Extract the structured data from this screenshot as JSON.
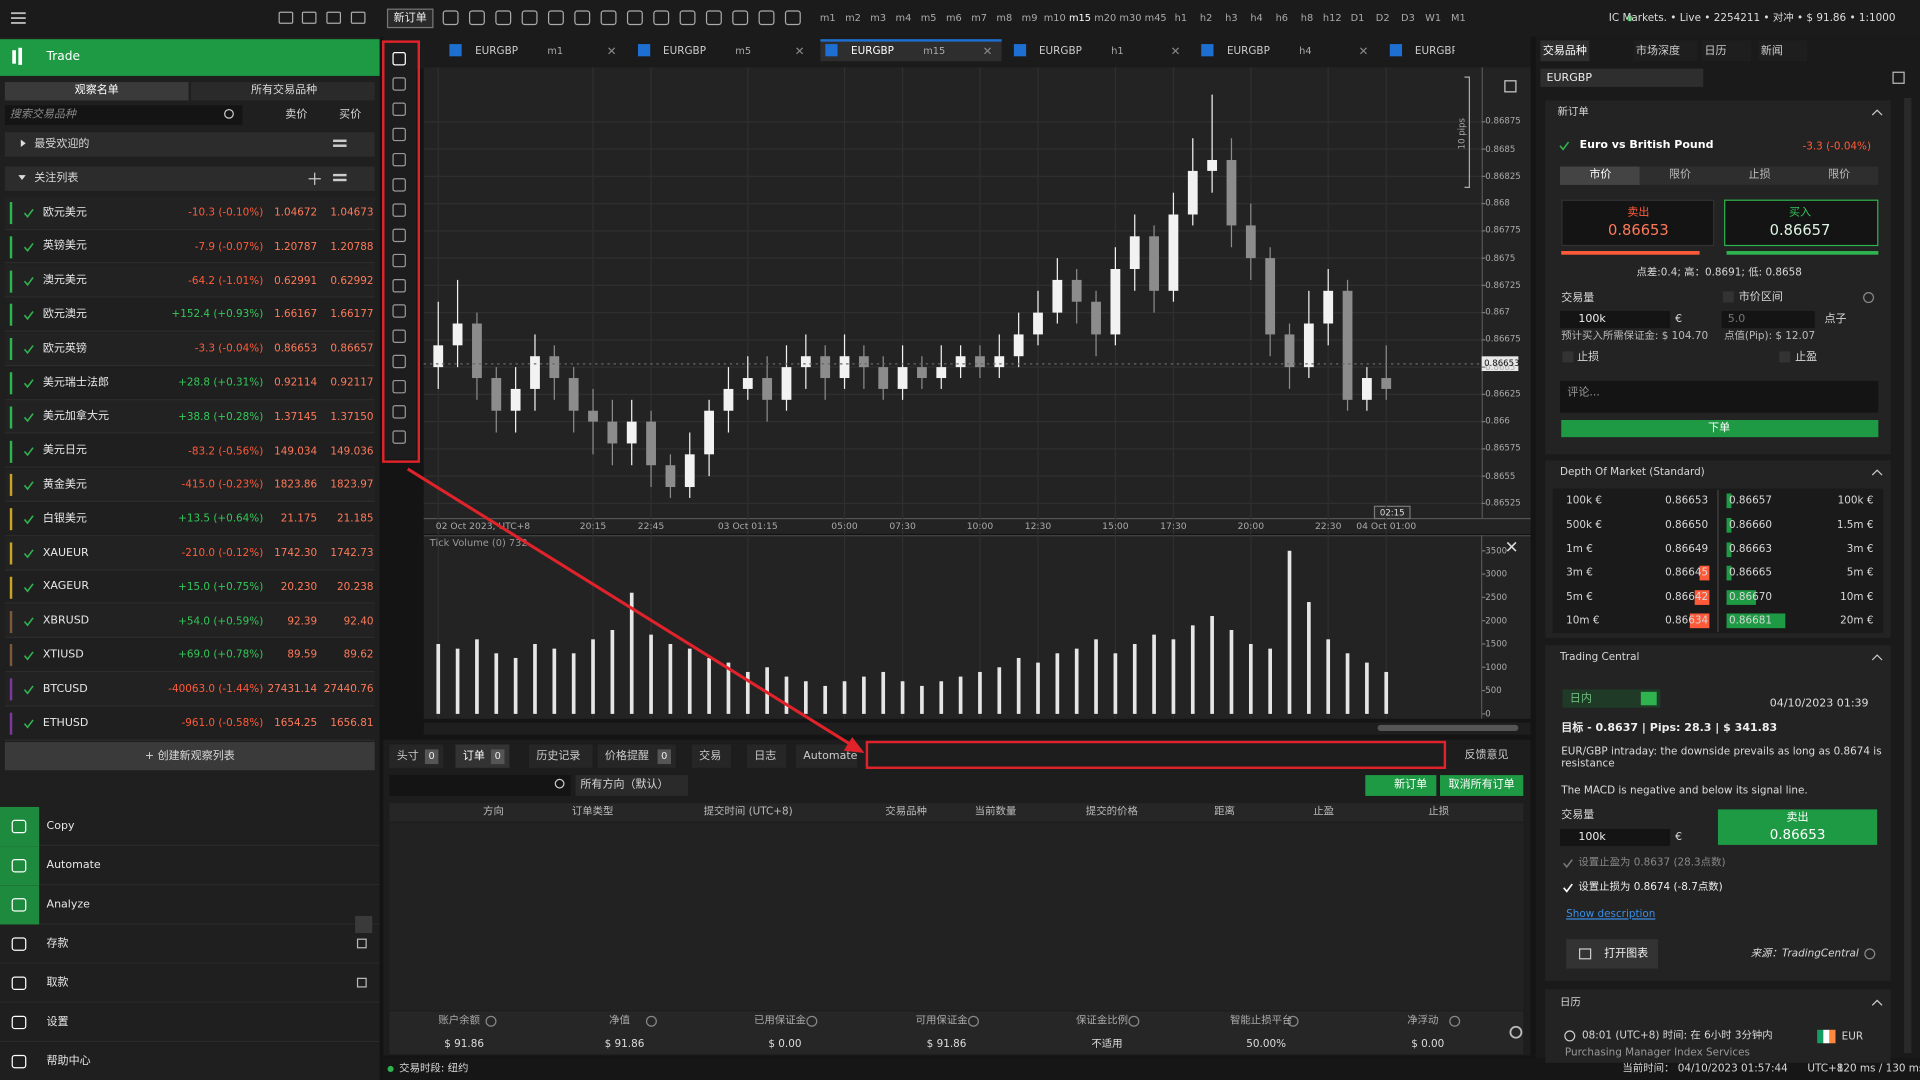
{
  "topbar": {
    "new_order": "新订单",
    "timeframes": [
      "m1",
      "m2",
      "m3",
      "m4",
      "m5",
      "m6",
      "m7",
      "m8",
      "m9",
      "m10",
      "m15",
      "m20",
      "m30",
      "m45",
      "h1",
      "h2",
      "h3",
      "h4",
      "h6",
      "h8",
      "h12",
      "D1",
      "D2",
      "D3",
      "W1",
      "M1"
    ],
    "account": "IC Markets. • Live • 2254211 • 对冲 • $ 91.86 • 1:1000"
  },
  "sidebar": {
    "title": "Trade",
    "tabs": [
      "观察名单",
      "所有交易品种"
    ],
    "search_placeholder": "搜索交易品种",
    "col_bid": "卖价",
    "col_ask": "买价",
    "favorites": "最受欢迎的",
    "watchlist": "关注列表",
    "rows": [
      [
        "欧元美元",
        "-10.3 (-0.10%)",
        "1.04672",
        "1.04673"
      ],
      [
        "英镑美元",
        "-7.9 (-0.07%)",
        "1.20787",
        "1.20788"
      ],
      [
        "澳元美元",
        "-64.2 (-1.01%)",
        "0.62991",
        "0.62992"
      ],
      [
        "欧元澳元",
        "+152.4 (+0.93%)",
        "1.66167",
        "1.66177"
      ],
      [
        "欧元英镑",
        "-3.3 (-0.04%)",
        "0.86653",
        "0.86657"
      ],
      [
        "美元瑞士法郎",
        "+28.8 (+0.31%)",
        "0.92114",
        "0.92117"
      ],
      [
        "美元加拿大元",
        "+38.8 (+0.28%)",
        "1.37145",
        "1.37150"
      ],
      [
        "美元日元",
        "-83.2 (-0.56%)",
        "149.034",
        "149.036"
      ],
      [
        "黄金美元",
        "-415.0 (-0.23%)",
        "1823.86",
        "1823.97"
      ],
      [
        "白银美元",
        "+13.5 (+0.64%)",
        "21.175",
        "21.185"
      ],
      [
        "XAUEUR",
        "-210.0 (-0.12%)",
        "1742.30",
        "1742.73"
      ],
      [
        "XAGEUR",
        "+15.0 (+0.75%)",
        "20.230",
        "20.238"
      ],
      [
        "XBRUSD",
        "+54.0 (+0.59%)",
        "92.39",
        "92.40"
      ],
      [
        "XTIUSD",
        "+69.0 (+0.78%)",
        "89.59",
        "89.62"
      ],
      [
        "BTCUSD",
        "-40063.0 (-1.44%)",
        "27431.14",
        "27440.76"
      ],
      [
        "ETHUSD",
        "-961.0 (-0.58%)",
        "1654.25",
        "1656.81"
      ]
    ],
    "create": "+ 创建新观察列表",
    "nav": [
      "Copy",
      "Automate",
      "Analyze",
      "存款",
      "取款",
      "设置",
      "帮助中心"
    ]
  },
  "chart_tabs": [
    {
      "symbol": "EURGBP",
      "timeframe": "m1"
    },
    {
      "symbol": "EURGBP",
      "timeframe": "m5"
    },
    {
      "symbol": "EURGBP",
      "timeframe": "m15"
    },
    {
      "symbol": "EURGBP",
      "timeframe": "h1"
    },
    {
      "symbol": "EURGBP",
      "timeframe": "h4"
    },
    {
      "symbol": "EURGBP"
    }
  ],
  "chart_data": [
    {
      "type": "candlestick",
      "annotation": "10 pips",
      "time_marker": "02:15",
      "last_price": 0.86653,
      "up_color": "#f2f2f2",
      "down_color": "#8c8c8c",
      "grid": true,
      "categories": [
        "02 Oct 2023, UTC+8",
        null,
        null,
        null,
        null,
        null,
        null,
        null,
        "20:15",
        null,
        null,
        "22:45",
        null,
        null,
        null,
        null,
        "03 Oct 01:15",
        null,
        null,
        null,
        null,
        "05:00",
        null,
        null,
        "07:30",
        null,
        null,
        null,
        "10:00",
        null,
        null,
        "12:30",
        null,
        null,
        null,
        "15:00",
        null,
        null,
        "17:30",
        null,
        null,
        null,
        "20:00",
        null,
        null,
        null,
        "22:30",
        null,
        null,
        "04 Oct 01:00"
      ],
      "open": [
        0.8665,
        0.8667,
        0.8669,
        0.8664,
        0.8661,
        0.8663,
        0.8666,
        0.8664,
        0.8661,
        0.866,
        0.8658,
        0.866,
        0.8656,
        0.8654,
        0.8657,
        0.8661,
        0.8663,
        0.8664,
        0.8662,
        0.8665,
        0.8666,
        0.8664,
        0.8666,
        0.8665,
        0.8663,
        0.8665,
        0.8664,
        0.8665,
        0.8666,
        0.8665,
        0.8666,
        0.8668,
        0.867,
        0.8673,
        0.8671,
        0.8668,
        0.8674,
        0.8677,
        0.8672,
        0.8679,
        0.8683,
        0.8684,
        0.8678,
        0.8675,
        0.8668,
        0.8665,
        0.8669,
        0.8672,
        0.8662,
        0.8664
      ],
      "high": [
        0.8671,
        0.8673,
        0.867,
        0.8665,
        0.8665,
        0.8668,
        0.8667,
        0.8665,
        0.8663,
        0.8662,
        0.8662,
        0.8661,
        0.8657,
        0.8659,
        0.8662,
        0.8665,
        0.8666,
        0.8666,
        0.8667,
        0.8668,
        0.8667,
        0.8668,
        0.8667,
        0.8666,
        0.8667,
        0.8666,
        0.8667,
        0.8667,
        0.8667,
        0.8668,
        0.867,
        0.8672,
        0.8675,
        0.8674,
        0.8672,
        0.8676,
        0.8679,
        0.8678,
        0.8681,
        0.8686,
        0.869,
        0.8686,
        0.868,
        0.8676,
        0.8669,
        0.8672,
        0.8674,
        0.8673,
        0.8665,
        0.8667
      ],
      "low": [
        0.8663,
        0.8665,
        0.8662,
        0.8659,
        0.8659,
        0.8661,
        0.8662,
        0.8659,
        0.8657,
        0.8656,
        0.8656,
        0.8654,
        0.8653,
        0.8653,
        0.8655,
        0.8659,
        0.8662,
        0.866,
        0.8661,
        0.8663,
        0.8662,
        0.8663,
        0.8663,
        0.8662,
        0.8662,
        0.8663,
        0.8663,
        0.8664,
        0.8664,
        0.8664,
        0.8665,
        0.8667,
        0.8669,
        0.8669,
        0.8666,
        0.8667,
        0.8672,
        0.867,
        0.8671,
        0.8678,
        0.8681,
        0.8676,
        0.8673,
        0.8666,
        0.8663,
        0.8664,
        0.8667,
        0.8661,
        0.8661,
        0.8662
      ],
      "close": [
        0.8667,
        0.8669,
        0.8664,
        0.8661,
        0.8663,
        0.8666,
        0.8664,
        0.8661,
        0.866,
        0.8658,
        0.866,
        0.8656,
        0.8654,
        0.8657,
        0.8661,
        0.8663,
        0.8664,
        0.8662,
        0.8665,
        0.8666,
        0.8664,
        0.8666,
        0.8665,
        0.8663,
        0.8665,
        0.8664,
        0.8665,
        0.8666,
        0.8665,
        0.8666,
        0.8668,
        0.867,
        0.8673,
        0.8671,
        0.8668,
        0.8674,
        0.8677,
        0.8672,
        0.8679,
        0.8683,
        0.8684,
        0.8678,
        0.8675,
        0.8668,
        0.8665,
        0.8669,
        0.8672,
        0.8662,
        0.8664,
        0.8663
      ],
      "ylim": [
        0.86515,
        0.86925
      ],
      "yticks": [
        0.86525,
        0.8655,
        0.86575,
        0.866,
        0.86625,
        0.8665,
        0.86675,
        0.867,
        0.86725,
        0.8675,
        0.86775,
        0.868,
        0.86825,
        0.8685,
        0.86875
      ]
    },
    {
      "type": "bar",
      "title": "Tick Volume (0) 732",
      "color": "#e6e6e6",
      "values": [
        1500,
        1400,
        1600,
        1300,
        1200,
        1500,
        1400,
        1300,
        1600,
        1800,
        2600,
        1700,
        1500,
        1400,
        1200,
        1100,
        900,
        1000,
        800,
        700,
        600,
        700,
        800,
        900,
        700,
        600,
        700,
        800,
        900,
        1000,
        1200,
        1100,
        1300,
        1400,
        1600,
        1300,
        1500,
        1700,
        1600,
        1900,
        2100,
        1800,
        1500,
        1400,
        3500,
        2400,
        1600,
        1300,
        1100,
        900
      ],
      "ylim": [
        0,
        3600
      ],
      "yticks": [
        0,
        500,
        1000,
        1500,
        2000,
        2500,
        3000,
        3500
      ]
    }
  ],
  "orders": {
    "tabs": [
      {
        "label": "头寸",
        "count": 0
      },
      {
        "label": "订单",
        "count": 0
      },
      {
        "label": "历史记录"
      },
      {
        "label": "价格提醒",
        "count": 0
      },
      {
        "label": "交易"
      },
      {
        "label": "日志"
      },
      {
        "label": "Automate"
      }
    ],
    "feedback": "反馈意见",
    "direction_filter": "所有方向（默认）",
    "new_order": "新订单",
    "cancel_all": "取消所有订单",
    "columns": [
      "方向",
      "订单类型",
      "提交时间 (UTC+8)",
      "交易品种",
      "当前数量",
      "提交的价格",
      "距离",
      "止盈",
      "止损"
    ],
    "summary": [
      {
        "label": "账户余额",
        "value": "$ 91.86"
      },
      {
        "label": "净值",
        "value": "$ 91.86"
      },
      {
        "label": "已用保证金",
        "value": "$ 0.00"
      },
      {
        "label": "可用保证金",
        "value": "$ 91.86"
      },
      {
        "label": "保证金比例",
        "value": "不适用"
      },
      {
        "label": "智能止损平台",
        "value": "50.00%"
      },
      {
        "label": "净浮动",
        "value": "$ 0.00"
      }
    ]
  },
  "status": {
    "session": "交易时段: 纽约",
    "time": "当前时间： 04/10/2023 01:57:44",
    "timezone": "UTC+8",
    "latency": "120 ms / 130 ms"
  },
  "right": {
    "tabs": [
      "交易品种",
      "市场深度",
      "日历",
      "新闻"
    ],
    "symbol": "EURGBP",
    "new_order": {
      "title": "新订单",
      "symbol_name": "Euro vs British Pound",
      "change": "-3.3 (-0.04%)",
      "order_types": [
        "市价",
        "限价",
        "止损",
        "限价"
      ],
      "sell_label": "卖出",
      "sell_price": "0.86653",
      "buy_label": "买入",
      "buy_price": "0.86657",
      "stats": "点差:0.4; 高：0.8691; 低: 0.8658",
      "volume_label": "交易量",
      "range_label": "市价区间",
      "volume": "100k",
      "currency": "€",
      "range": "5.0",
      "pips": "点子",
      "margin": "预计买入所需保证金: $ 104.70",
      "pip_value": "点值(Pip): $ 12.07",
      "stop_loss": "止损",
      "take_profit": "止盈",
      "comment": "评论...",
      "submit": "下单"
    },
    "dom": {
      "title": "Depth Of Market (Standard)",
      "bids": [
        [
          "100k €",
          "0.86653"
        ],
        [
          "500k €",
          "0.86650"
        ],
        [
          "1m €",
          "0.86649"
        ],
        [
          "3m €",
          "0.86645"
        ],
        [
          "5m €",
          "0.86642"
        ],
        [
          "10m €",
          "0.86634"
        ]
      ],
      "asks": [
        [
          "0.86657",
          "100k €"
        ],
        [
          "0.86660",
          "1.5m €"
        ],
        [
          "0.86663",
          "3m €"
        ],
        [
          "0.86665",
          "5m €"
        ],
        [
          "0.86670",
          "10m €"
        ],
        [
          "0.86681",
          "20m €"
        ]
      ]
    },
    "tc": {
      "title": "Trading Central",
      "horizon": "日内",
      "date": "04/10/2023 01:39",
      "target": "目标 - 0.8637 | Pips: 28.3 | $ 341.83",
      "text1": "EUR/GBP intraday: the downside prevails as long as 0.8674 is resistance",
      "text2": "The MACD is negative and below its signal line.",
      "volume_label": "交易量",
      "volume": "100k",
      "currency": "€",
      "sell_label": "卖出",
      "sell_price": "0.86653",
      "tp": "设置止盈为 0.8637 (28.3点数)",
      "sl": "设置止损为 0.8674 (-8.7点数)",
      "show_desc": "Show description",
      "open_chart": "打开图表",
      "source": "来源：TradingCentral"
    },
    "calendar": {
      "title": "日历",
      "time": "08:01 (UTC+8) 时间: 在 6小时 3分钟内",
      "currency": "EUR",
      "event": "Purchasing Manager Index Services"
    }
  }
}
